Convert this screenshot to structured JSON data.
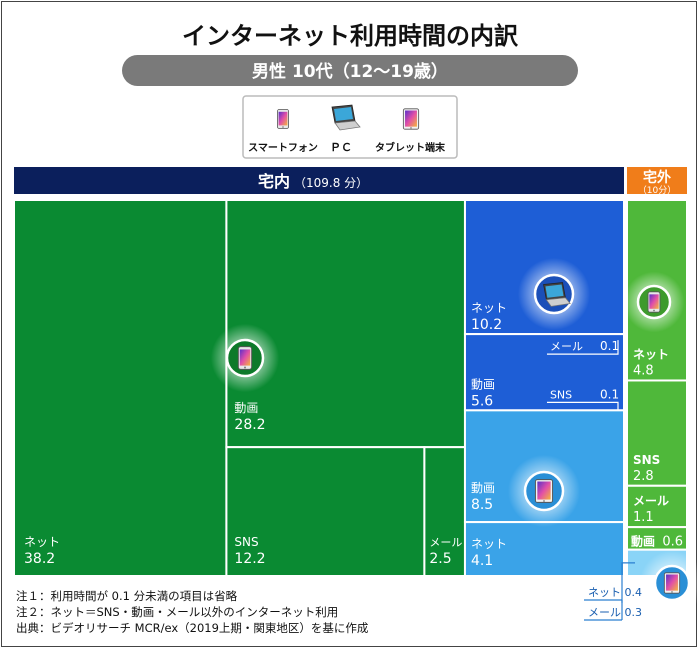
{
  "title": "インターネット利用時間の内訳",
  "subtitle": "男性 10代（12〜19歳）",
  "legend": [
    {
      "label": "スマートフォン",
      "icon": "smartphone-icon"
    },
    {
      "label": "ＰＣ",
      "icon": "laptop-icon"
    },
    {
      "label": "タブレット端末",
      "icon": "tablet-icon"
    }
  ],
  "home_header": {
    "label": "宅内",
    "total": "（109.8 分）"
  },
  "away_header": {
    "label": "宅外",
    "total": "（10分）"
  },
  "notes": [
    "注１：利用時間が 0.1 分未満の項目は省略",
    "注２：ネット＝SNS・動画・メール以外のインターネット利用",
    "出典：ビデオリサーチ MCR/ex（2019上期・関東地区）を基に作成"
  ],
  "colors": {
    "smartphone": "#0a8a32",
    "pc": "#1e5ed6",
    "tablet": "#3aa3e8",
    "home_header": "#0b1f5c",
    "away_header": "#f07d1a",
    "away_cells": "#4fb83a",
    "subtitle_bg": "#7a7a7a"
  },
  "chart_data": {
    "type": "treemap",
    "unit": "分",
    "groups": [
      {
        "location": "宅内",
        "total": 109.8,
        "devices": [
          {
            "device": "スマートフォン",
            "items": [
              {
                "label": "ネット",
                "value": 38.2
              },
              {
                "label": "動画",
                "value": 28.2
              },
              {
                "label": "SNS",
                "value": 12.2
              },
              {
                "label": "メール",
                "value": 2.5
              }
            ]
          },
          {
            "device": "ＰＣ",
            "items": [
              {
                "label": "ネット",
                "value": 10.2
              },
              {
                "label": "動画",
                "value": 5.6
              },
              {
                "label": "メール",
                "value": 0.1
              },
              {
                "label": "SNS",
                "value": 0.1
              }
            ]
          },
          {
            "device": "タブレット端末",
            "items": [
              {
                "label": "動画",
                "value": 8.5
              },
              {
                "label": "ネット",
                "value": 4.1
              }
            ]
          }
        ]
      },
      {
        "location": "宅外",
        "total": 10,
        "devices": [
          {
            "device": "スマートフォン",
            "items": [
              {
                "label": "ネット",
                "value": 4.8
              },
              {
                "label": "SNS",
                "value": 2.8
              },
              {
                "label": "メール",
                "value": 1.1
              },
              {
                "label": "動画",
                "value": 0.6
              }
            ]
          },
          {
            "device": "タブレット端末",
            "items": [
              {
                "label": "ネット",
                "value": 0.4
              },
              {
                "label": "メール",
                "value": 0.3
              }
            ]
          }
        ]
      }
    ]
  }
}
